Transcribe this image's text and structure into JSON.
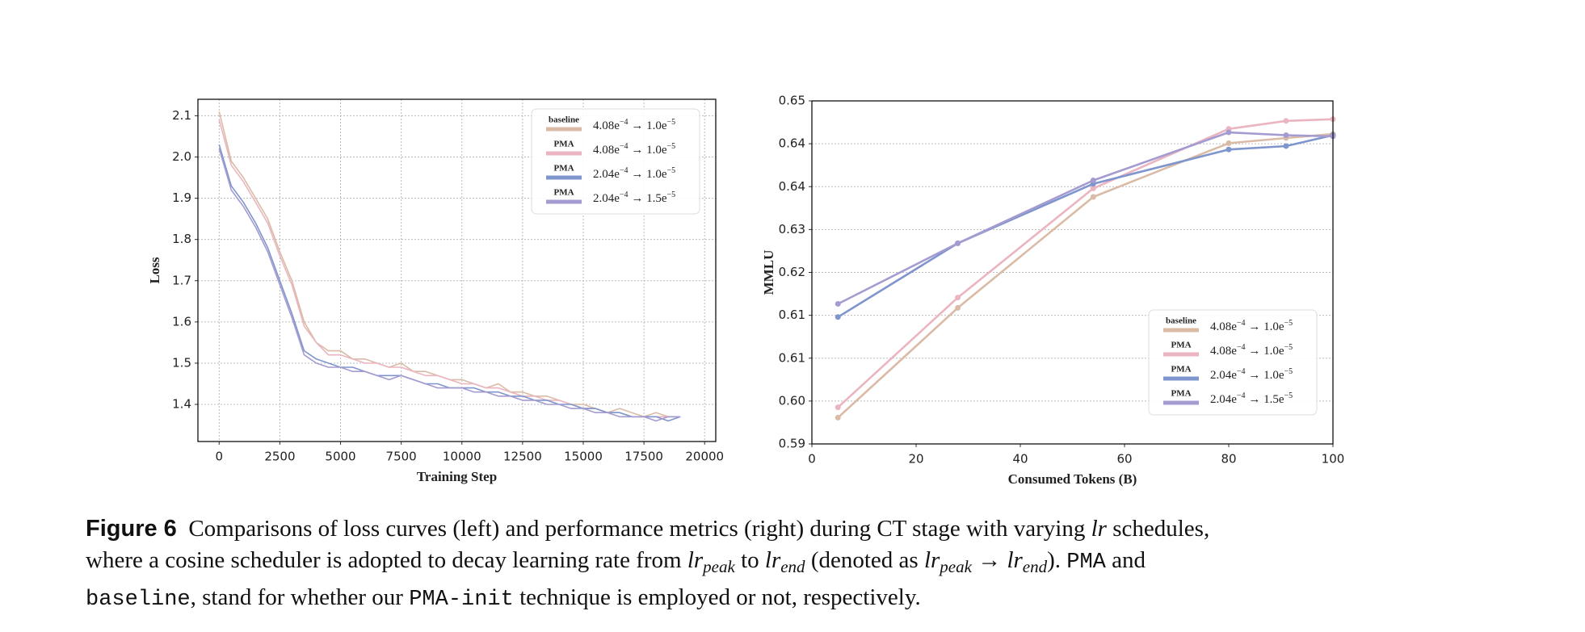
{
  "chart_data": [
    {
      "type": "line",
      "xlabel": "Training Step",
      "ylabel": "Loss",
      "x": [
        0,
        500,
        1000,
        1500,
        2000,
        2500,
        3000,
        3500,
        4000,
        4500,
        5000,
        5500,
        6000,
        6500,
        7000,
        7500,
        8000,
        8500,
        9000,
        9500,
        10000,
        10500,
        11000,
        11500,
        12000,
        12500,
        13000,
        13500,
        14000,
        14500,
        15000,
        15500,
        16000,
        16500,
        17000,
        17500,
        18000,
        18500,
        19000
      ],
      "series": [
        {
          "name": "baseline",
          "lr": [
            "4.08e",
            "−4",
            " → 1.0e",
            "−5"
          ],
          "color": "#d9bba6",
          "values": [
            2.11,
            1.99,
            1.95,
            1.9,
            1.85,
            1.77,
            1.7,
            1.6,
            1.55,
            1.53,
            1.53,
            1.51,
            1.51,
            1.5,
            1.49,
            1.5,
            1.48,
            1.48,
            1.47,
            1.46,
            1.46,
            1.45,
            1.44,
            1.45,
            1.43,
            1.43,
            1.42,
            1.42,
            1.41,
            1.4,
            1.4,
            1.39,
            1.38,
            1.39,
            1.38,
            1.37,
            1.38,
            1.37,
            1.37
          ]
        },
        {
          "name": "PMA",
          "lr": [
            "4.08e",
            "−4",
            " → 1.0e",
            "−5"
          ],
          "color": "#eab5c0",
          "values": [
            2.09,
            1.98,
            1.94,
            1.89,
            1.84,
            1.76,
            1.69,
            1.59,
            1.55,
            1.52,
            1.52,
            1.51,
            1.5,
            1.5,
            1.49,
            1.49,
            1.48,
            1.47,
            1.47,
            1.46,
            1.45,
            1.45,
            1.44,
            1.44,
            1.43,
            1.42,
            1.42,
            1.41,
            1.41,
            1.4,
            1.39,
            1.39,
            1.38,
            1.38,
            1.37,
            1.37,
            1.37,
            1.37,
            1.37
          ]
        },
        {
          "name": "PMA",
          "lr": [
            "2.04e",
            "−4",
            " → 1.0e",
            "−5"
          ],
          "color": "#7f95cd",
          "values": [
            2.03,
            1.93,
            1.89,
            1.84,
            1.78,
            1.7,
            1.62,
            1.53,
            1.51,
            1.5,
            1.49,
            1.49,
            1.48,
            1.47,
            1.47,
            1.47,
            1.46,
            1.45,
            1.45,
            1.44,
            1.44,
            1.44,
            1.43,
            1.43,
            1.42,
            1.42,
            1.41,
            1.41,
            1.4,
            1.4,
            1.39,
            1.39,
            1.38,
            1.38,
            1.37,
            1.37,
            1.37,
            1.36,
            1.37
          ]
        },
        {
          "name": "PMA",
          "lr": [
            "2.04e",
            "−4",
            " → 1.5e",
            "−5"
          ],
          "color": "#a49bd0",
          "values": [
            2.02,
            1.92,
            1.88,
            1.83,
            1.77,
            1.69,
            1.61,
            1.52,
            1.5,
            1.49,
            1.49,
            1.48,
            1.48,
            1.47,
            1.46,
            1.47,
            1.46,
            1.45,
            1.44,
            1.44,
            1.44,
            1.43,
            1.43,
            1.42,
            1.42,
            1.41,
            1.41,
            1.4,
            1.4,
            1.39,
            1.39,
            1.38,
            1.38,
            1.37,
            1.37,
            1.37,
            1.36,
            1.37,
            1.37
          ]
        }
      ],
      "xlim": [
        -875,
        20458
      ],
      "xticks": [
        0,
        2500,
        5000,
        7500,
        10000,
        12500,
        15000,
        17500,
        20000
      ],
      "ylim": [
        1.31,
        2.14
      ],
      "yticks": [
        1.4,
        1.5,
        1.6,
        1.7,
        1.8,
        1.9,
        {
          "value": 2,
          "label": "2.0"
        },
        2.1
      ],
      "grid": "both",
      "legend": "upper right",
      "markers": false
    },
    {
      "type": "line",
      "xlabel": "Consumed Tokens (B)",
      "ylabel": "MMLU",
      "x": [
        5,
        28,
        54,
        80,
        91,
        100
      ],
      "series": [
        {
          "name": "baseline",
          "lr": [
            "4.08e",
            "−4",
            " → 1.0e",
            "−5"
          ],
          "color": "#d9bba6",
          "values": [
            0.5946,
            0.6138,
            0.6332,
            0.6426,
            0.6435,
            0.6442
          ]
        },
        {
          "name": "PMA",
          "lr": [
            "4.08e",
            "−4",
            " → 1.0e",
            "−5"
          ],
          "color": "#eab5c0",
          "values": [
            0.5964,
            0.6156,
            0.6347,
            0.6451,
            0.6465,
            0.6468
          ]
        },
        {
          "name": "PMA",
          "lr": [
            "2.04e",
            "−4",
            " → 1.0e",
            "−5"
          ],
          "color": "#7f95cd",
          "values": [
            0.6122,
            0.6251,
            0.6355,
            0.6415,
            0.6421,
            0.644
          ]
        },
        {
          "name": "PMA",
          "lr": [
            "2.04e",
            "−4",
            " → 1.5e",
            "−5"
          ],
          "color": "#a49bd0",
          "values": [
            0.6145,
            0.6251,
            0.6361,
            0.6445,
            0.644,
            0.6438
          ]
        }
      ],
      "xlim": [
        0,
        100
      ],
      "xticks": [
        0,
        20,
        40,
        60,
        80,
        100
      ],
      "ylim": [
        0.59,
        0.65
      ],
      "yticks": [
        0.59,
        {
          "value": 0.5975,
          "label": "0.60"
        },
        {
          "value": 0.605,
          "label": "0.61"
        },
        {
          "value": 0.6125,
          "label": "0.61"
        },
        0.62,
        {
          "value": 0.6275,
          "label": "0.63"
        },
        {
          "value": 0.635,
          "label": "0.64"
        },
        {
          "value": 0.6425,
          "label": "0.64"
        },
        0.65
      ],
      "grid": "y",
      "legend": "lower right",
      "markers": true
    }
  ],
  "caption": {
    "lines": [
      [
        {
          "text": "Figure 6",
          "style": "bold"
        },
        {
          "text": "  Comparisons of loss curves (left) and performance metrics (right) during CT stage with varying ",
          "style": "serif"
        },
        {
          "text": "lr",
          "style": "math"
        },
        {
          "text": " schedules,",
          "style": "serif"
        }
      ],
      [
        {
          "text": "where a cosine scheduler is adopted to decay learning rate from ",
          "style": "serif"
        },
        {
          "text": "lr",
          "style": "math"
        },
        {
          "text": "peak",
          "style": "sub"
        },
        {
          "text": " to ",
          "style": "serif"
        },
        {
          "text": "lr",
          "style": "math"
        },
        {
          "text": "end",
          "style": "sub"
        },
        {
          "text": " (denoted as ",
          "style": "serif"
        },
        {
          "text": "lr",
          "style": "math"
        },
        {
          "text": "peak",
          "style": "sub"
        },
        {
          "text": " → lr",
          "style": "math"
        },
        {
          "text": "end",
          "style": "sub"
        },
        {
          "text": "). ",
          "style": "serif"
        },
        {
          "text": "PMA",
          "style": "mono"
        },
        {
          "text": " and",
          "style": "serif"
        }
      ],
      [
        {
          "text": "baseline",
          "style": "mono"
        },
        {
          "text": ", stand for whether our ",
          "style": "serif"
        },
        {
          "text": "PMA-init",
          "style": "mono"
        },
        {
          "text": " technique is employed or not, respectively.",
          "style": "serif"
        }
      ]
    ]
  }
}
